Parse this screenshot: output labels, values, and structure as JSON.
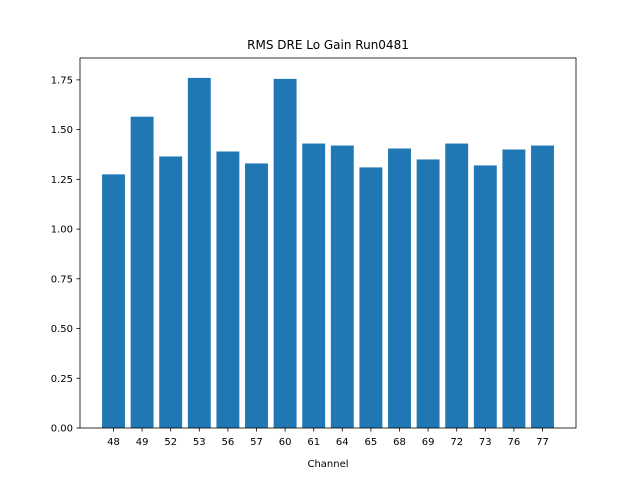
{
  "chart_data": {
    "type": "bar",
    "title": "RMS DRE Lo Gain Run0481",
    "xlabel": "Channel",
    "ylabel": "",
    "categories": [
      "48",
      "49",
      "52",
      "53",
      "56",
      "57",
      "60",
      "61",
      "64",
      "65",
      "68",
      "69",
      "72",
      "73",
      "76",
      "77"
    ],
    "values": [
      1.275,
      1.565,
      1.365,
      1.76,
      1.39,
      1.33,
      1.755,
      1.43,
      1.42,
      1.31,
      1.405,
      1.35,
      1.43,
      1.32,
      1.4,
      1.42
    ],
    "ylim": [
      0,
      1.86
    ],
    "yticks": [
      "0.00",
      "0.25",
      "0.50",
      "0.75",
      "1.00",
      "1.25",
      "1.50",
      "1.75"
    ],
    "bar_color": "#1f77b4",
    "grid": false
  }
}
